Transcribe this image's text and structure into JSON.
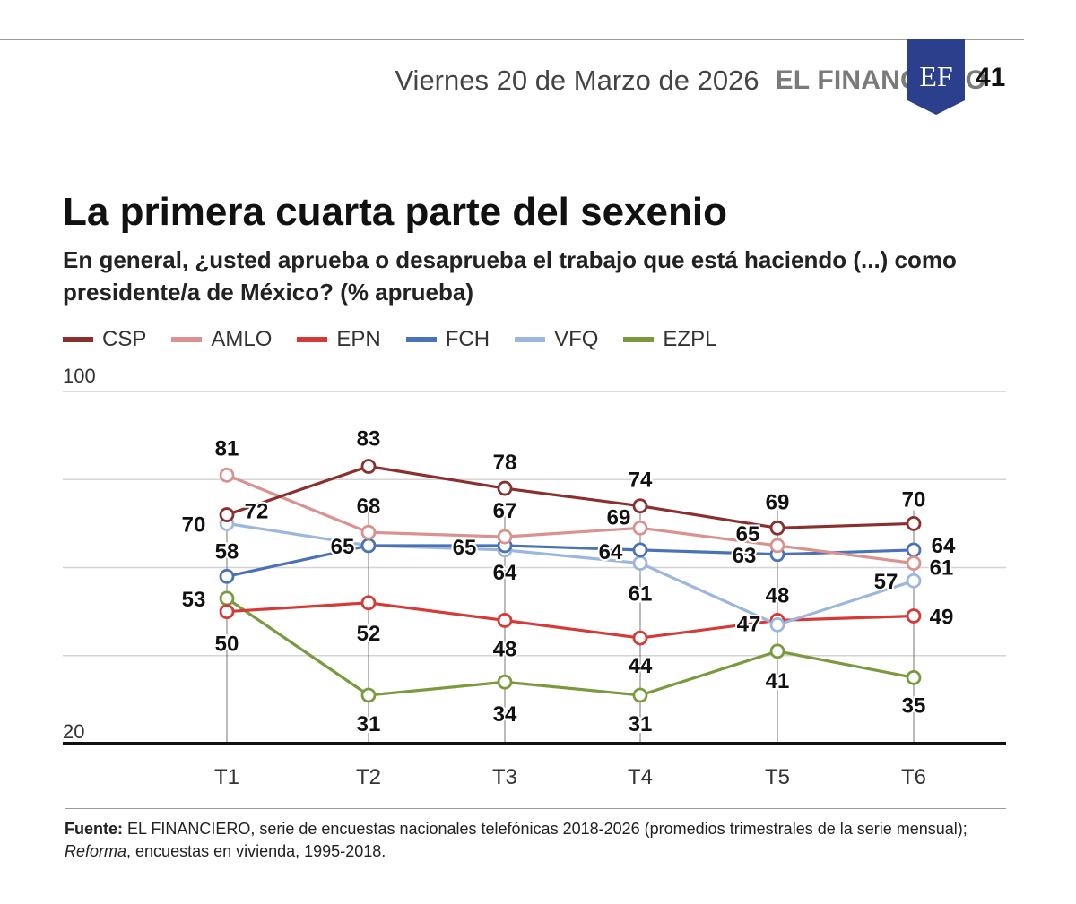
{
  "header": {
    "date": "Viernes 20 de Marzo de 2026",
    "brand": "EL FINANCIERO",
    "logo_text": "EF",
    "page_number": "41"
  },
  "colors": {
    "CSP": "#8b2e2e",
    "AMLO": "#d9928f",
    "EPN": "#d63a36",
    "FCH": "#4a72b8",
    "VFQ": "#9db6dd",
    "EZPL": "#7a9a3e",
    "logo_bg": "#2c3f8c"
  },
  "footnote": {
    "label": "Fuente:",
    "text_before_italic": " EL FINANCIERO, serie de encuestas nacionales telefónicas 2018-2026 (promedios trimestrales de la serie mensual); ",
    "italic": "Reforma",
    "text_after_italic": ", encuestas en vivienda, 1995-2018."
  },
  "chart_data": {
    "type": "line",
    "title": "La primera cuarta parte del sexenio",
    "subtitle": "En general, ¿usted aprueba o desaprueba el trabajo que está haciendo (...) como presidente/a de México? (% aprueba)",
    "x": [
      "T1",
      "T2",
      "T3",
      "T4",
      "T5",
      "T6"
    ],
    "ylim": [
      20,
      100
    ],
    "ytick_labels": [
      "100",
      "20"
    ],
    "grid": true,
    "legend_position": "top-left",
    "series": [
      {
        "name": "CSP",
        "values": [
          72,
          83,
          78,
          74,
          69,
          70
        ]
      },
      {
        "name": "AMLO",
        "values": [
          81,
          68,
          67,
          69,
          65,
          61
        ]
      },
      {
        "name": "EPN",
        "values": [
          50,
          52,
          48,
          44,
          48,
          49
        ]
      },
      {
        "name": "FCH",
        "values": [
          58,
          65,
          65,
          64,
          63,
          64
        ]
      },
      {
        "name": "VFQ",
        "values": [
          70,
          65,
          64,
          61,
          47,
          57
        ]
      },
      {
        "name": "EZPL",
        "values": [
          53,
          31,
          34,
          31,
          41,
          35
        ]
      }
    ]
  }
}
